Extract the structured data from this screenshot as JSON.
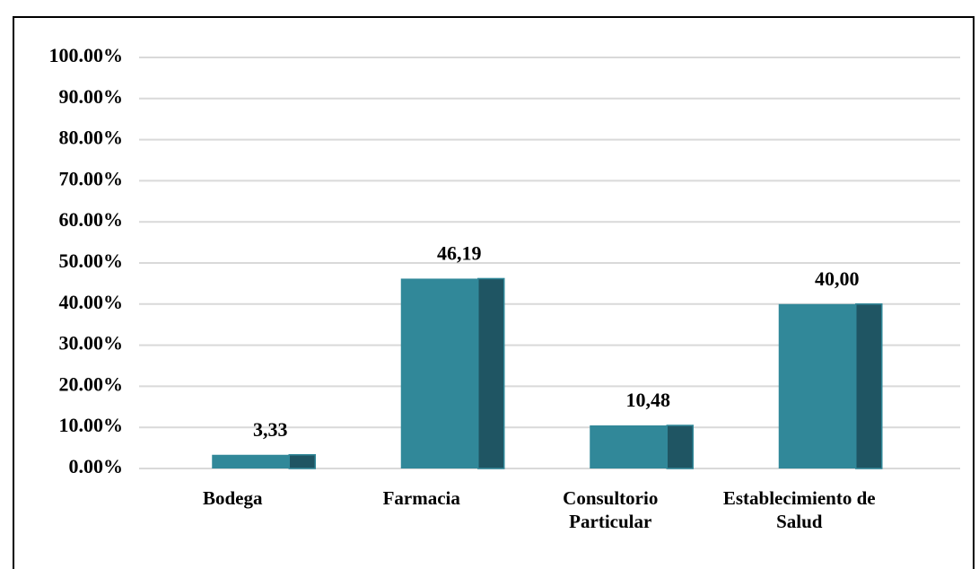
{
  "chart_data": {
    "type": "bar",
    "categories": [
      "Bodega",
      "Farmacia",
      "Consultorio Particular",
      "Establecimiento de Salud"
    ],
    "values": [
      3.33,
      46.19,
      10.48,
      40
    ],
    "value_labels": [
      "3,33",
      "46,19",
      "10,48",
      "40,00"
    ],
    "color": "#318899",
    "side_color": "#1f5563",
    "ylim": [
      0,
      100
    ],
    "yticks": [
      {
        "value": 0,
        "label": "0.00%"
      },
      {
        "value": 10,
        "label": "10.00%"
      },
      {
        "value": 20,
        "label": "20.00%"
      },
      {
        "value": 30,
        "label": "30.00%"
      },
      {
        "value": 40,
        "label": "40.00%"
      },
      {
        "value": 50,
        "label": "50.00%"
      },
      {
        "value": 60,
        "label": "60.00%"
      },
      {
        "value": 70,
        "label": "70.00%"
      },
      {
        "value": 80,
        "label": "80.00%"
      },
      {
        "value": 90,
        "label": "90.00%"
      },
      {
        "value": 100,
        "label": "100.00%"
      }
    ],
    "grid": true
  }
}
